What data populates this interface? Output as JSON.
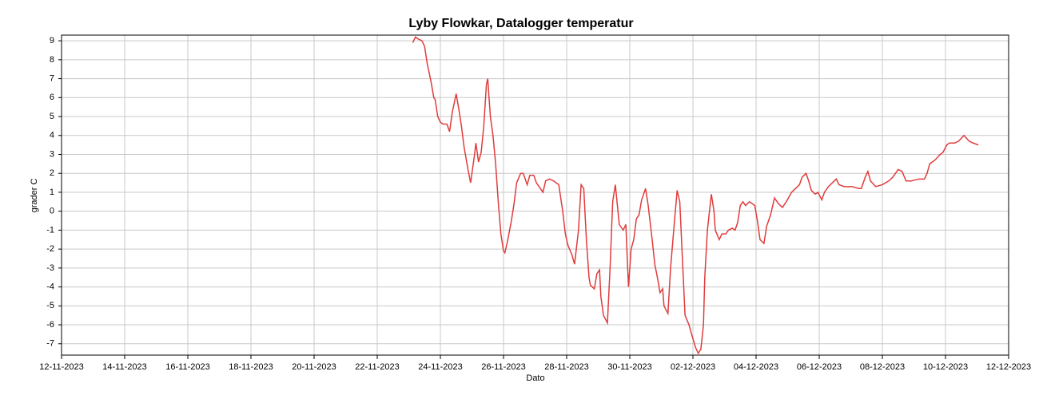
{
  "chart_data": {
    "type": "line",
    "title": "Lyby Flowkar, Datalogger temperatur",
    "xlabel": "Dato",
    "ylabel": "grader C",
    "x": [
      "2023-11-23T03:00",
      "2023-11-23T05:00",
      "2023-11-23T07:00",
      "2023-11-23T10:00",
      "2023-11-23T12:00",
      "2023-11-23T14:00",
      "2023-11-23T17:00",
      "2023-11-23T19:00",
      "2023-11-23T20:00",
      "2023-11-23T22:00",
      "2023-11-24T00:00",
      "2023-11-24T02:00",
      "2023-11-24T05:00",
      "2023-11-24T07:00",
      "2023-11-24T09:00",
      "2023-11-24T12:00",
      "2023-11-24T14:00",
      "2023-11-24T16:00",
      "2023-11-24T18:00",
      "2023-11-24T21:00",
      "2023-11-24T23:00",
      "2023-11-25T02:00",
      "2023-11-25T03:00",
      "2023-11-25T05:00",
      "2023-11-25T07:00",
      "2023-11-25T09:00",
      "2023-11-25T11:00",
      "2023-11-25T12:00",
      "2023-11-25T14:00",
      "2023-11-25T16:00",
      "2023-11-25T18:00",
      "2023-11-25T20:00",
      "2023-11-25T22:00",
      "2023-11-26T00:00",
      "2023-11-26T01:00",
      "2023-11-26T03:00",
      "2023-11-26T06:00",
      "2023-11-26T08:00",
      "2023-11-26T10:00",
      "2023-11-26T13:00",
      "2023-11-26T15:00",
      "2023-11-26T18:00",
      "2023-11-26T20:00",
      "2023-11-26T23:00",
      "2023-11-27T01:00",
      "2023-11-27T04:00",
      "2023-11-27T06:00",
      "2023-11-27T08:00",
      "2023-11-27T11:00",
      "2023-11-27T14:00",
      "2023-11-27T18:00",
      "2023-11-27T21:00",
      "2023-11-27T23:00",
      "2023-11-28T01:00",
      "2023-11-28T04:00",
      "2023-11-28T06:00",
      "2023-11-28T09:00",
      "2023-11-28T11:00",
      "2023-11-28T13:00",
      "2023-11-28T15:00",
      "2023-11-28T17:00",
      "2023-11-28T18:00",
      "2023-11-28T21:00",
      "2023-11-28T23:00",
      "2023-11-29T01:00",
      "2023-11-29T02:00",
      "2023-11-29T04:00",
      "2023-11-29T07:00",
      "2023-11-29T09:00",
      "2023-11-29T11:00",
      "2023-11-29T13:00",
      "2023-11-29T15:00",
      "2023-11-29T16:00",
      "2023-11-29T19:00",
      "2023-11-29T21:00",
      "2023-11-29T23:00",
      "2023-11-30T01:00",
      "2023-11-30T03:00",
      "2023-11-30T05:00",
      "2023-11-30T07:00",
      "2023-11-30T09:00",
      "2023-11-30T12:00",
      "2023-11-30T14:00",
      "2023-11-30T17:00",
      "2023-11-30T19:00",
      "2023-11-30T21:00",
      "2023-11-30T23:00",
      "2023-12-01T01:00",
      "2023-12-01T02:00",
      "2023-12-01T05:00",
      "2023-12-01T07:00",
      "2023-12-01T10:00",
      "2023-12-01T12:00",
      "2023-12-01T14:00",
      "2023-12-01T16:00",
      "2023-12-01T18:00",
      "2023-12-01T21:00",
      "2023-12-01T23:00",
      "2023-12-02T02:00",
      "2023-12-02T04:00",
      "2023-12-02T06:00",
      "2023-12-02T08:00",
      "2023-12-02T09:00",
      "2023-12-02T11:00",
      "2023-12-02T14:00",
      "2023-12-02T16:00",
      "2023-12-02T17:00",
      "2023-12-02T20:00",
      "2023-12-02T22:00",
      "2023-12-03T01:00",
      "2023-12-03T03:00",
      "2023-12-03T06:00",
      "2023-12-03T08:00",
      "2023-12-03T10:00",
      "2023-12-03T12:00",
      "2023-12-03T14:00",
      "2023-12-03T16:00",
      "2023-12-03T19:00",
      "2023-12-03T23:00",
      "2023-12-04T01:00",
      "2023-12-04T03:00",
      "2023-12-04T06:00",
      "2023-12-04T08:00",
      "2023-12-04T11:00",
      "2023-12-04T14:00",
      "2023-12-04T17:00",
      "2023-12-04T20:00",
      "2023-12-04T23:00",
      "2023-12-05T03:00",
      "2023-12-05T06:00",
      "2023-12-05T09:00",
      "2023-12-05T11:00",
      "2023-12-05T14:00",
      "2023-12-05T16:00",
      "2023-12-05T18:00",
      "2023-12-05T21:00",
      "2023-12-05T23:00",
      "2023-12-06T02:00",
      "2023-12-06T04:00",
      "2023-12-06T07:00",
      "2023-12-06T10:00",
      "2023-12-06T13:00",
      "2023-12-06T15:00",
      "2023-12-06T19:00",
      "2023-12-07T01:00",
      "2023-12-07T06:00",
      "2023-12-07T08:00",
      "2023-12-07T11:00",
      "2023-12-07T13:00",
      "2023-12-07T15:00",
      "2023-12-07T19:00",
      "2023-12-08T00:00",
      "2023-12-08T05:00",
      "2023-12-08T08:00",
      "2023-12-08T12:00",
      "2023-12-08T15:00",
      "2023-12-08T18:00",
      "2023-12-08T22:00",
      "2023-12-09T04:00",
      "2023-12-09T08:00",
      "2023-12-09T10:00",
      "2023-12-09T12:00",
      "2023-12-09T16:00",
      "2023-12-09T20:00",
      "2023-12-09T22:00",
      "2023-12-10T01:00",
      "2023-12-10T03:00",
      "2023-12-10T07:00",
      "2023-12-10T10:00",
      "2023-12-10T14:00",
      "2023-12-10T18:00",
      "2023-12-10T21:00",
      "2023-12-11T01:00"
    ],
    "series": [
      {
        "name": "temperatur",
        "color": "#e03c3c",
        "values": [
          8.9,
          9.2,
          9.1,
          9.0,
          8.7,
          7.8,
          6.8,
          6.0,
          5.9,
          5.0,
          4.7,
          4.6,
          4.6,
          4.2,
          5.2,
          6.2,
          5.4,
          4.5,
          3.4,
          2.2,
          1.5,
          3.0,
          3.6,
          2.6,
          3.1,
          4.5,
          6.7,
          7.0,
          5.0,
          4.0,
          2.5,
          0.5,
          -1.2,
          -2.1,
          -2.2,
          -1.6,
          -0.5,
          0.4,
          1.5,
          2.0,
          2.0,
          1.4,
          1.9,
          1.9,
          1.5,
          1.2,
          1.0,
          1.6,
          1.7,
          1.6,
          1.4,
          0.0,
          -1.2,
          -1.8,
          -2.3,
          -2.8,
          -1.0,
          1.4,
          1.2,
          -1.5,
          -3.5,
          -3.9,
          -4.1,
          -3.3,
          -3.1,
          -4.5,
          -5.5,
          -5.9,
          -3.0,
          0.5,
          1.4,
          0.0,
          -0.7,
          -1.0,
          -0.7,
          -4.0,
          -2.0,
          -1.5,
          -0.4,
          -0.2,
          0.6,
          1.2,
          0.3,
          -1.5,
          -2.8,
          -3.5,
          -4.3,
          -4.1,
          -5.0,
          -5.4,
          -3.0,
          -0.5,
          1.1,
          0.5,
          -2.5,
          -5.5,
          -6.0,
          -6.5,
          -7.2,
          -7.5,
          -7.3,
          -6.0,
          -3.5,
          -1.0,
          0.9,
          0.0,
          -1.0,
          -1.5,
          -1.2,
          -1.2,
          -1.0,
          -0.9,
          -1.0,
          -0.6,
          0.3,
          0.5,
          0.3,
          0.5,
          0.3,
          -0.5,
          -1.5,
          -1.7,
          -0.8,
          -0.2,
          0.7,
          0.4,
          0.2,
          0.5,
          1.0,
          1.2,
          1.4,
          1.8,
          2.0,
          1.6,
          1.1,
          0.9,
          1.0,
          0.6,
          1.0,
          1.3,
          1.5,
          1.7,
          1.4,
          1.3,
          1.3,
          1.2,
          1.2,
          1.8,
          2.1,
          1.6,
          1.3,
          1.4,
          1.6,
          1.8,
          2.2,
          2.1,
          1.6,
          1.6,
          1.7,
          1.7,
          2.0,
          2.5,
          2.7,
          3.0,
          3.1,
          3.5,
          3.6,
          3.6,
          3.7,
          4.0,
          3.7,
          3.6,
          3.5
        ]
      }
    ],
    "xlim": [
      "2023-11-12",
      "2023-12-12"
    ],
    "xticks": [
      {
        "value": "2023-11-12",
        "label": "12-11-2023"
      },
      {
        "value": "2023-11-14",
        "label": "14-11-2023"
      },
      {
        "value": "2023-11-16",
        "label": "16-11-2023"
      },
      {
        "value": "2023-11-18",
        "label": "18-11-2023"
      },
      {
        "value": "2023-11-20",
        "label": "20-11-2023"
      },
      {
        "value": "2023-11-22",
        "label": "22-11-2023"
      },
      {
        "value": "2023-11-24",
        "label": "24-11-2023"
      },
      {
        "value": "2023-11-26",
        "label": "26-11-2023"
      },
      {
        "value": "2023-11-28",
        "label": "28-11-2023"
      },
      {
        "value": "2023-11-30",
        "label": "30-11-2023"
      },
      {
        "value": "2023-12-02",
        "label": "02-12-2023"
      },
      {
        "value": "2023-12-04",
        "label": "04-12-2023"
      },
      {
        "value": "2023-12-06",
        "label": "06-12-2023"
      },
      {
        "value": "2023-12-08",
        "label": "08-12-2023"
      },
      {
        "value": "2023-12-10",
        "label": "10-12-2023"
      },
      {
        "value": "2023-12-12",
        "label": "12-12-2023"
      }
    ],
    "ylim": [
      -7.6,
      9.3
    ],
    "yticks": [
      -7,
      -6,
      -5,
      -4,
      -3,
      -2,
      -1,
      0,
      1,
      2,
      3,
      4,
      5,
      6,
      7,
      8,
      9
    ],
    "grid": true
  }
}
